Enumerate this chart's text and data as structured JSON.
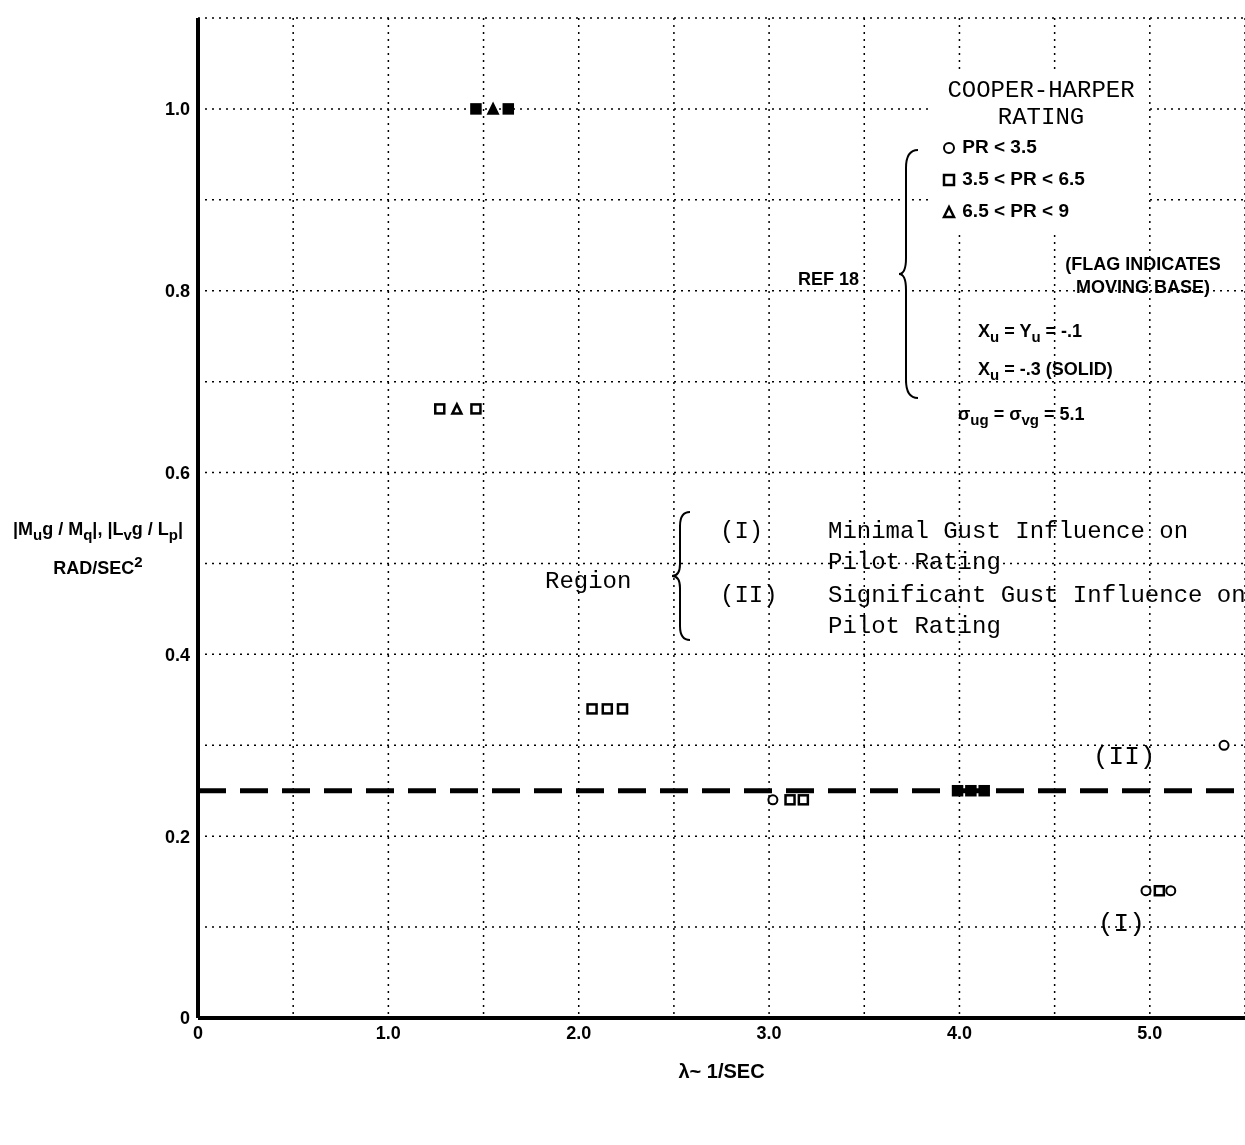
{
  "chart_data": {
    "type": "scatter",
    "xlabel": "λ~ 1/SEC",
    "ylabel": "|M$_{u}$g / M$_{q}$|, |L$_{v}$g / L$_{p}$| RAD/SEC$^{2}$",
    "legend_title": "COOPER-HARPER RATING",
    "xlim": [
      0,
      5.5
    ],
    "ylim": [
      0,
      1.1
    ],
    "xticks": [
      0,
      {
        "value": 0.5,
        "label": null
      },
      {
        "value": 1,
        "label": "1.0"
      },
      {
        "value": 1.5,
        "label": null
      },
      {
        "value": 2,
        "label": "2.0"
      },
      {
        "value": 2.5,
        "label": null
      },
      {
        "value": 3,
        "label": "3.0"
      },
      {
        "value": 3.5,
        "label": null
      },
      {
        "value": 4,
        "label": "4.0"
      },
      {
        "value": 4.5,
        "label": null
      },
      {
        "value": 5,
        "label": "5.0"
      }
    ],
    "yticks": [
      0,
      {
        "value": 0.1,
        "label": null
      },
      0.2,
      {
        "value": 0.3,
        "label": null
      },
      0.4,
      {
        "value": 0.5,
        "label": null
      },
      0.6,
      {
        "value": 0.7,
        "label": null
      },
      0.8,
      {
        "value": 0.9,
        "label": null
      },
      {
        "value": 1,
        "label": "1.0"
      },
      {
        "value": 1.1,
        "label": null
      }
    ],
    "grid": true,
    "legend": "top right",
    "series": [
      {
        "name": "PR < 3.5",
        "color": "#000000",
        "marker": "circle",
        "x": [
          3.02,
          4.98,
          5.11,
          5.39
        ],
        "values": [
          0.24,
          0.14,
          0.14,
          0.3
        ]
      },
      {
        "name": "3.5 < PR < 6.5",
        "color": "#000000",
        "marker": "square",
        "x": [
          1.27,
          1.46,
          2.07,
          2.15,
          2.23,
          3.11,
          3.18,
          5.05
        ],
        "values": [
          0.67,
          0.67,
          0.34,
          0.34,
          0.34,
          0.24,
          0.24,
          0.14
        ]
      },
      {
        "name": "6.5 < PR < 9",
        "color": "#000000",
        "marker": "triangle",
        "x": [
          1.36
        ],
        "values": [
          0.67
        ]
      },
      {
        "color": "#000000",
        "marker": "square",
        "x": [
          1.46,
          1.63,
          3.99,
          4.06,
          4.13
        ],
        "values": [
          1.0,
          1.0,
          0.25,
          0.25,
          0.25
        ]
      },
      {
        "color": "#000000",
        "marker": "triangle",
        "x": [
          1.55
        ],
        "values": [
          1.0
        ]
      }
    ],
    "ref_lines": [
      {
        "axis": "y",
        "value": 0.25,
        "color": "#000000",
        "line_style": "dashed"
      }
    ],
    "annotations": [
      "REF 18",
      "(FLAG INDICATES MOVING BASE)",
      "X$_{u}$ = Y$_{u}$ = -.1",
      "X$_{u}$ = -.3 (SOLID)",
      "σ$_{ug}$ = σ$_{vg}$ = 5.1",
      "Region",
      "(I)",
      "Minimal Gust Influence on Pilot Rating",
      "(II)",
      "Significant Gust Influence on Pilot Rating",
      "(II)",
      "(I)"
    ]
  }
}
